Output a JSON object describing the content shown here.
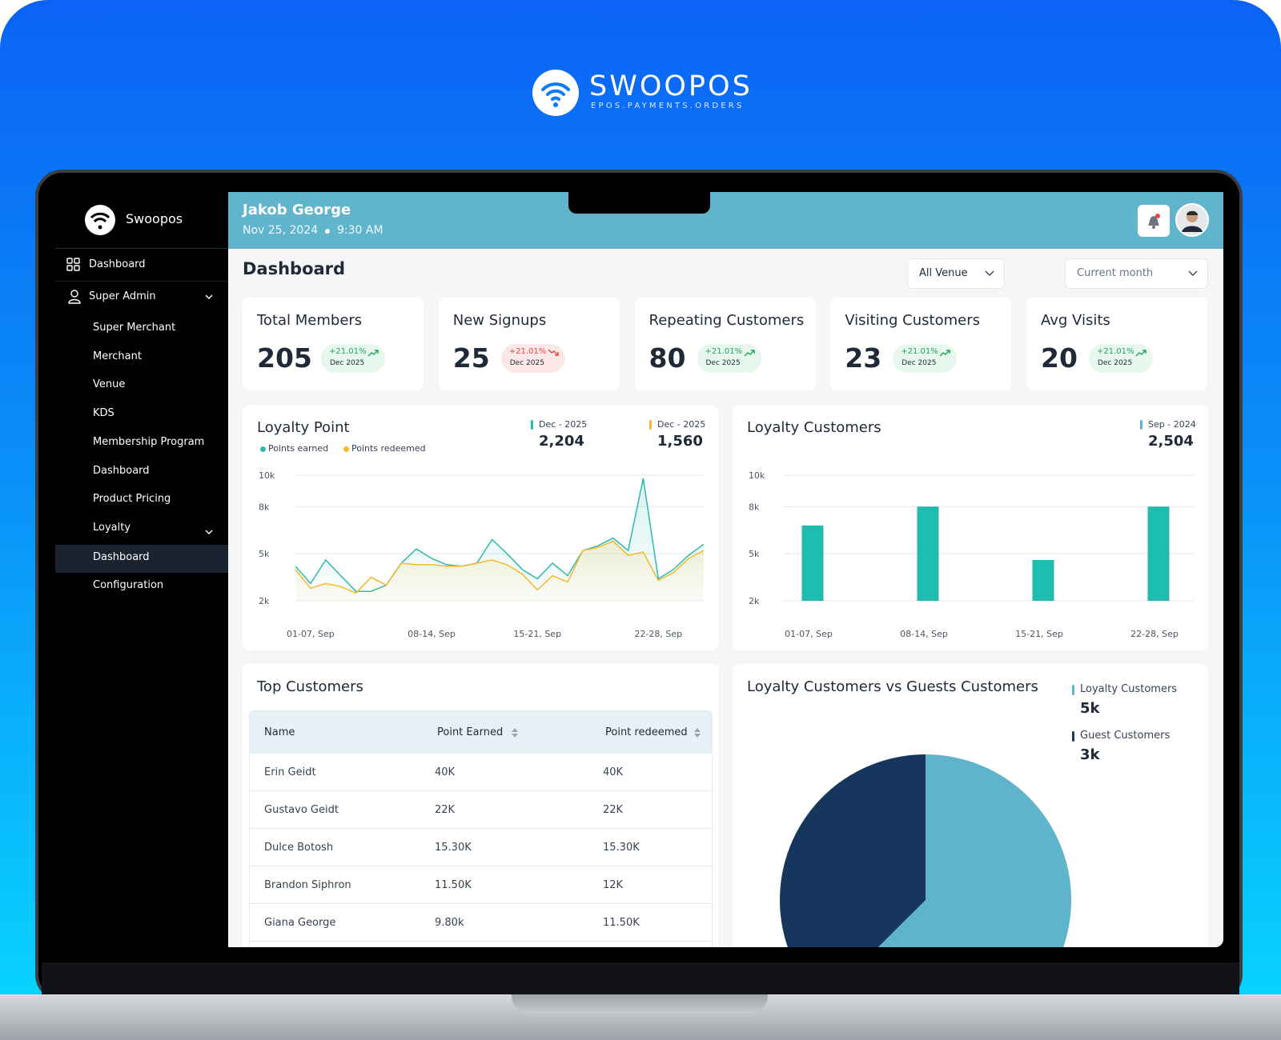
{
  "brand": {
    "name": "SWOOPOS",
    "tagline": "EPOS.PAYMENTS.ORDERS"
  },
  "sidebar": {
    "brand": "Swoopos",
    "items": [
      "Dashboard",
      "Super Admin",
      "Super Merchant",
      "Merchant",
      "Venue",
      "KDS",
      "Membership Program",
      "Dashboard",
      "Product Pricing",
      "Loyalty",
      "Dashboard",
      "Configuration"
    ]
  },
  "header": {
    "user": "Jakob George",
    "date": "Nov 25, 2024",
    "time": "9:30 AM"
  },
  "page_title": "Dashboard",
  "filters": [
    "All Venue",
    "Current month"
  ],
  "stats": [
    {
      "title": "Total Members",
      "value": 205,
      "change": "+21.01%",
      "period": "Dec 2025",
      "trend": "up"
    },
    {
      "title": "New Signups",
      "value": 25,
      "change": "+21.01%",
      "period": "Dec 2025",
      "trend": "down"
    },
    {
      "title": "Repeating Customers",
      "value": 80,
      "change": "+21.01%",
      "period": "Dec 2025",
      "trend": "up"
    },
    {
      "title": "Visiting Customers",
      "value": 23,
      "change": "+21.01%",
      "period": "Dec 2025",
      "trend": "up"
    },
    {
      "title": "Avg Visits",
      "value": 20,
      "change": "+21.01%",
      "period": "Dec 2025",
      "trend": "up"
    }
  ],
  "chart_data": [
    {
      "type": "line",
      "title": "Loyalty Point",
      "categories": [
        null,
        "01-07, Sep",
        null,
        null,
        null,
        null,
        null,
        null,
        null,
        "08-14, Sep",
        null,
        null,
        null,
        null,
        null,
        null,
        "15-21, Sep",
        null,
        null,
        null,
        null,
        null,
        null,
        null,
        "22-28, Sep",
        null,
        null,
        null
      ],
      "series": [
        {
          "name": "Points earned",
          "color": "#2bbbad",
          "values": [
            4200,
            3100,
            4600,
            3600,
            2600,
            2600,
            3000,
            4400,
            5300,
            4700,
            4300,
            4200,
            4400,
            5900,
            5000,
            4000,
            3400,
            4400,
            3600,
            5200,
            5500,
            6000,
            5200,
            9800,
            3400,
            4000,
            4900,
            5600
          ]
        },
        {
          "name": "Points redeemed",
          "color": "#f5b82e",
          "values": [
            4000,
            2800,
            3100,
            2900,
            2500,
            3500,
            3000,
            4400,
            4300,
            4300,
            4200,
            4200,
            4400,
            4600,
            4300,
            3700,
            2700,
            3600,
            3200,
            5200,
            5400,
            5800,
            4900,
            5100,
            3300,
            3800,
            4700,
            5200
          ]
        }
      ],
      "highlights": [
        {
          "period": "Dec - 2025",
          "value": "2,204",
          "color": "#2bbbad"
        },
        {
          "period": "Dec - 2025",
          "value": "1,560",
          "color": "#f5b82e"
        }
      ],
      "ylim": [
        2000,
        10000
      ],
      "yticks": [
        {
          "value": 10000,
          "label": "10k"
        },
        {
          "value": 8000,
          "label": "8k"
        },
        {
          "value": 5000,
          "label": "5k"
        },
        {
          "value": 2000,
          "label": "2k"
        }
      ],
      "grid": true
    },
    {
      "type": "bar",
      "title": "Loyalty Customers",
      "categories": [
        "01-07, Sep",
        "08-14, Sep",
        "15-21, Sep",
        "22-28, Sep"
      ],
      "values": [
        6800,
        8000,
        4600,
        8000
      ],
      "color": "#1fbcb0",
      "highlights": [
        {
          "period": "Sep - 2024",
          "value": "2,504",
          "color": "#5fb4cc"
        }
      ],
      "ylim": [
        2000,
        10000
      ],
      "yticks": [
        {
          "value": 10000,
          "label": "10k"
        },
        {
          "value": 8000,
          "label": "8k"
        },
        {
          "value": 5000,
          "label": "5k"
        },
        {
          "value": 2000,
          "label": "2k"
        }
      ],
      "grid": true
    },
    {
      "type": "pie",
      "title": "Loyalty Customers vs Guests Customers",
      "categories": [
        "Loyalty Customers",
        "Guest Customers"
      ],
      "values": [
        5000,
        3000
      ],
      "value_labels": [
        "5k",
        "3k"
      ],
      "colors": [
        "#5fb4cc",
        "#17365d"
      ]
    }
  ],
  "table": {
    "title": "Top Customers",
    "columns": [
      "Name",
      "Point Earned",
      "Point redeemed"
    ],
    "rows": [
      [
        "Erin Geidt",
        "40K",
        "40K"
      ],
      [
        "Gustavo Geidt",
        "22K",
        "22K"
      ],
      [
        "Dulce Botosh",
        "15.30K",
        "15.30K"
      ],
      [
        "Brandon Siphron",
        "11.50K",
        "12K"
      ],
      [
        "Giana George",
        "9.80k",
        "11.50K"
      ]
    ]
  }
}
